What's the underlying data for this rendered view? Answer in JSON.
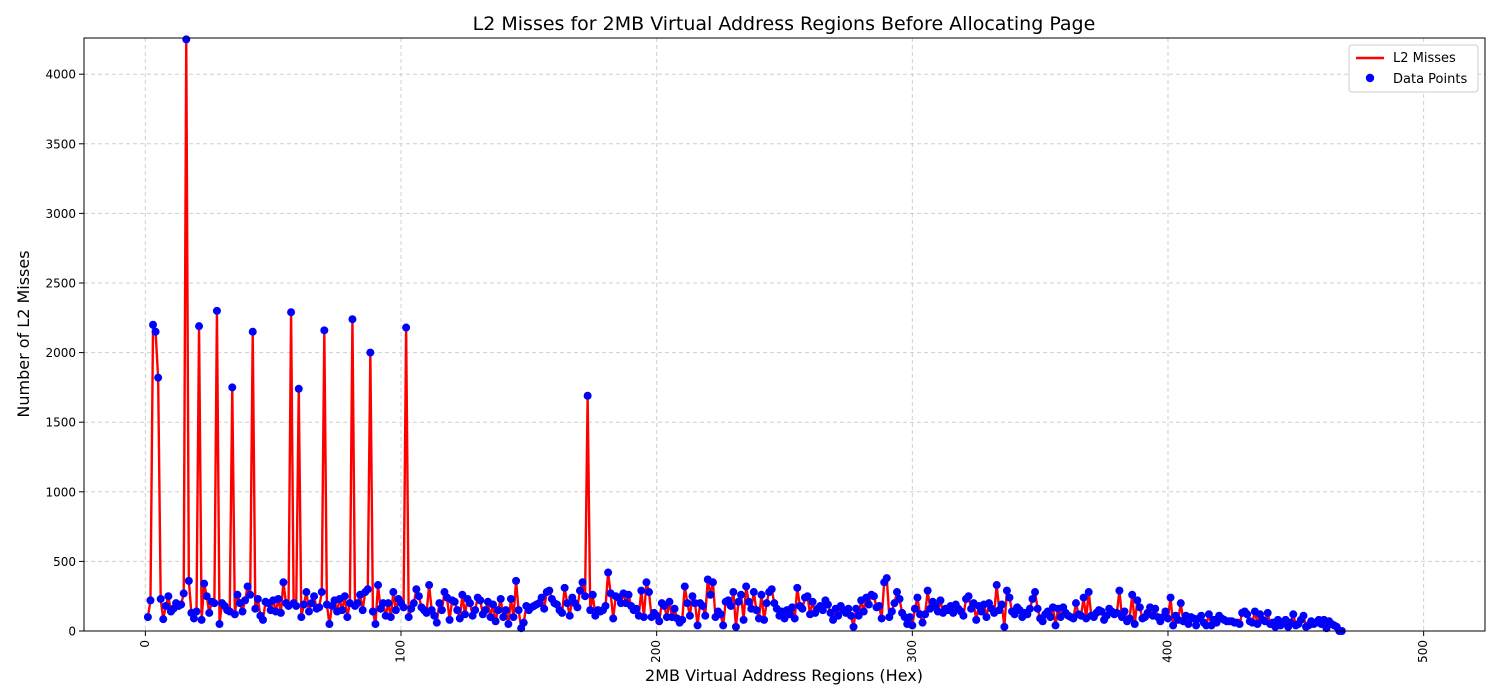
{
  "chart_data": {
    "type": "line",
    "title": "L2 Misses for 2MB Virtual Address Regions Before Allocating Page",
    "xlabel": "2MB Virtual Address Regions (Hex)",
    "ylabel": "Number of L2 Misses",
    "xlim": [
      -24,
      524
    ],
    "ylim": [
      0,
      4260
    ],
    "x_ticks": [
      0,
      100,
      200,
      300,
      400,
      500
    ],
    "y_ticks": [
      0,
      500,
      1000,
      1500,
      2000,
      2500,
      3000,
      3500,
      4000
    ],
    "x_tick_rotation": -90,
    "grid": true,
    "legend_position": "top-right",
    "legend": [
      "L2 Misses",
      "Data Points"
    ],
    "line_color": "#ff0000",
    "marker_color": "#0000ff",
    "series": [
      {
        "name": "L2 Misses",
        "x_start": 1,
        "x_step": 1,
        "values": [
          100,
          220,
          2200,
          2150,
          1820,
          230,
          85,
          180,
          250,
          140,
          160,
          200,
          180,
          190,
          270,
          4250,
          360,
          130,
          90,
          140,
          2190,
          80,
          340,
          250,
          130,
          210,
          200,
          2300,
          50,
          200,
          180,
          150,
          140,
          1750,
          120,
          260,
          200,
          140,
          220,
          320,
          260,
          2150,
          160,
          230,
          110,
          80,
          210,
          200,
          150,
          220,
          140,
          230,
          130,
          350,
          200,
          180,
          2290,
          200,
          180,
          1740,
          100,
          190,
          280,
          140,
          200,
          250,
          160,
          170,
          280,
          2160,
          190,
          50,
          180,
          220,
          140,
          230,
          150,
          250,
          100,
          200,
          2240,
          180,
          200,
          260,
          150,
          280,
          300,
          2000,
          140,
          50,
          330,
          160,
          200,
          110,
          200,
          100,
          280,
          150,
          230,
          200,
          170,
          2180,
          100,
          160,
          200,
          300,
          250,
          170,
          150,
          130,
          330,
          150,
          110,
          60,
          200,
          150,
          280,
          240,
          80,
          220,
          210,
          150,
          90,
          260,
          120,
          230,
          200,
          110,
          150,
          240,
          220,
          120,
          150,
          210,
          100,
          190,
          70,
          150,
          230,
          100,
          150,
          50,
          230,
          100,
          360,
          150,
          20,
          60,
          180,
          150,
          170,
          180,
          190,
          200,
          240,
          160,
          280,
          290,
          230,
          200,
          190,
          150,
          130,
          310,
          200,
          110,
          240,
          200,
          170,
          290,
          350,
          250,
          1690,
          150,
          260,
          110,
          150,
          140,
          150,
          180,
          420,
          270,
          90,
          250,
          240,
          200,
          270,
          200,
          260,
          180,
          150,
          160,
          110,
          290,
          100,
          350,
          280,
          100,
          130,
          110,
          70,
          200,
          180,
          100,
          210,
          100,
          160,
          90,
          60,
          80,
          320,
          200,
          110,
          250,
          200,
          40,
          200,
          180,
          110,
          370,
          260,
          350,
          100,
          140,
          120,
          40,
          210,
          220,
          180,
          280,
          30,
          210,
          260,
          80,
          320,
          210,
          160,
          280,
          150,
          90,
          260,
          80,
          200,
          280,
          300,
          200,
          160,
          110,
          140,
          90,
          150,
          120,
          170,
          90,
          310,
          180,
          160,
          240,
          250,
          120,
          210,
          130,
          160,
          180,
          150,
          220,
          190,
          130,
          80,
          160,
          110,
          180,
          150,
          130,
          160,
          110,
          30,
          160,
          110,
          220,
          140,
          240,
          190,
          260,
          250,
          170,
          180,
          90,
          350,
          380,
          100,
          140,
          200,
          280,
          230,
          130,
          100,
          50,
          100,
          40,
          160,
          240,
          120,
          60,
          120,
          290,
          160,
          210,
          180,
          140,
          220,
          130,
          160,
          150,
          180,
          130,
          190,
          160,
          140,
          110,
          230,
          250,
          160,
          200,
          80,
          180,
          140,
          190,
          100,
          200,
          160,
          130,
          330,
          150,
          190,
          30,
          290,
          240,
          140,
          120,
          170,
          150,
          100,
          130,
          120,
          160,
          230,
          280,
          160,
          90,
          70,
          120,
          140,
          100,
          170,
          40,
          160,
          100,
          170,
          130,
          110,
          100,
          90,
          200,
          120,
          110,
          240,
          90,
          280,
          110,
          100,
          130,
          150,
          140,
          80,
          110,
          160,
          140,
          120,
          130,
          290,
          100,
          140,
          70,
          90,
          260,
          50,
          220,
          170,
          90,
          100,
          130,
          170,
          110,
          160,
          100,
          70,
          100,
          140,
          90,
          240,
          40,
          110,
          80,
          200,
          70,
          110,
          50,
          100,
          90,
          40,
          90,
          110,
          60,
          40,
          120,
          40,
          80,
          60,
          110,
          90,
          80,
          70,
          70,
          70,
          60,
          60,
          50,
          130,
          140,
          120,
          70,
          60,
          140,
          50,
          120,
          80,
          70,
          130,
          50,
          60,
          30,
          80,
          40,
          60,
          80,
          30,
          60,
          120,
          40,
          50,
          80,
          110,
          30,
          40,
          70,
          50,
          60,
          80,
          50,
          80,
          20,
          70,
          50,
          40,
          30,
          0,
          0
        ]
      }
    ]
  }
}
